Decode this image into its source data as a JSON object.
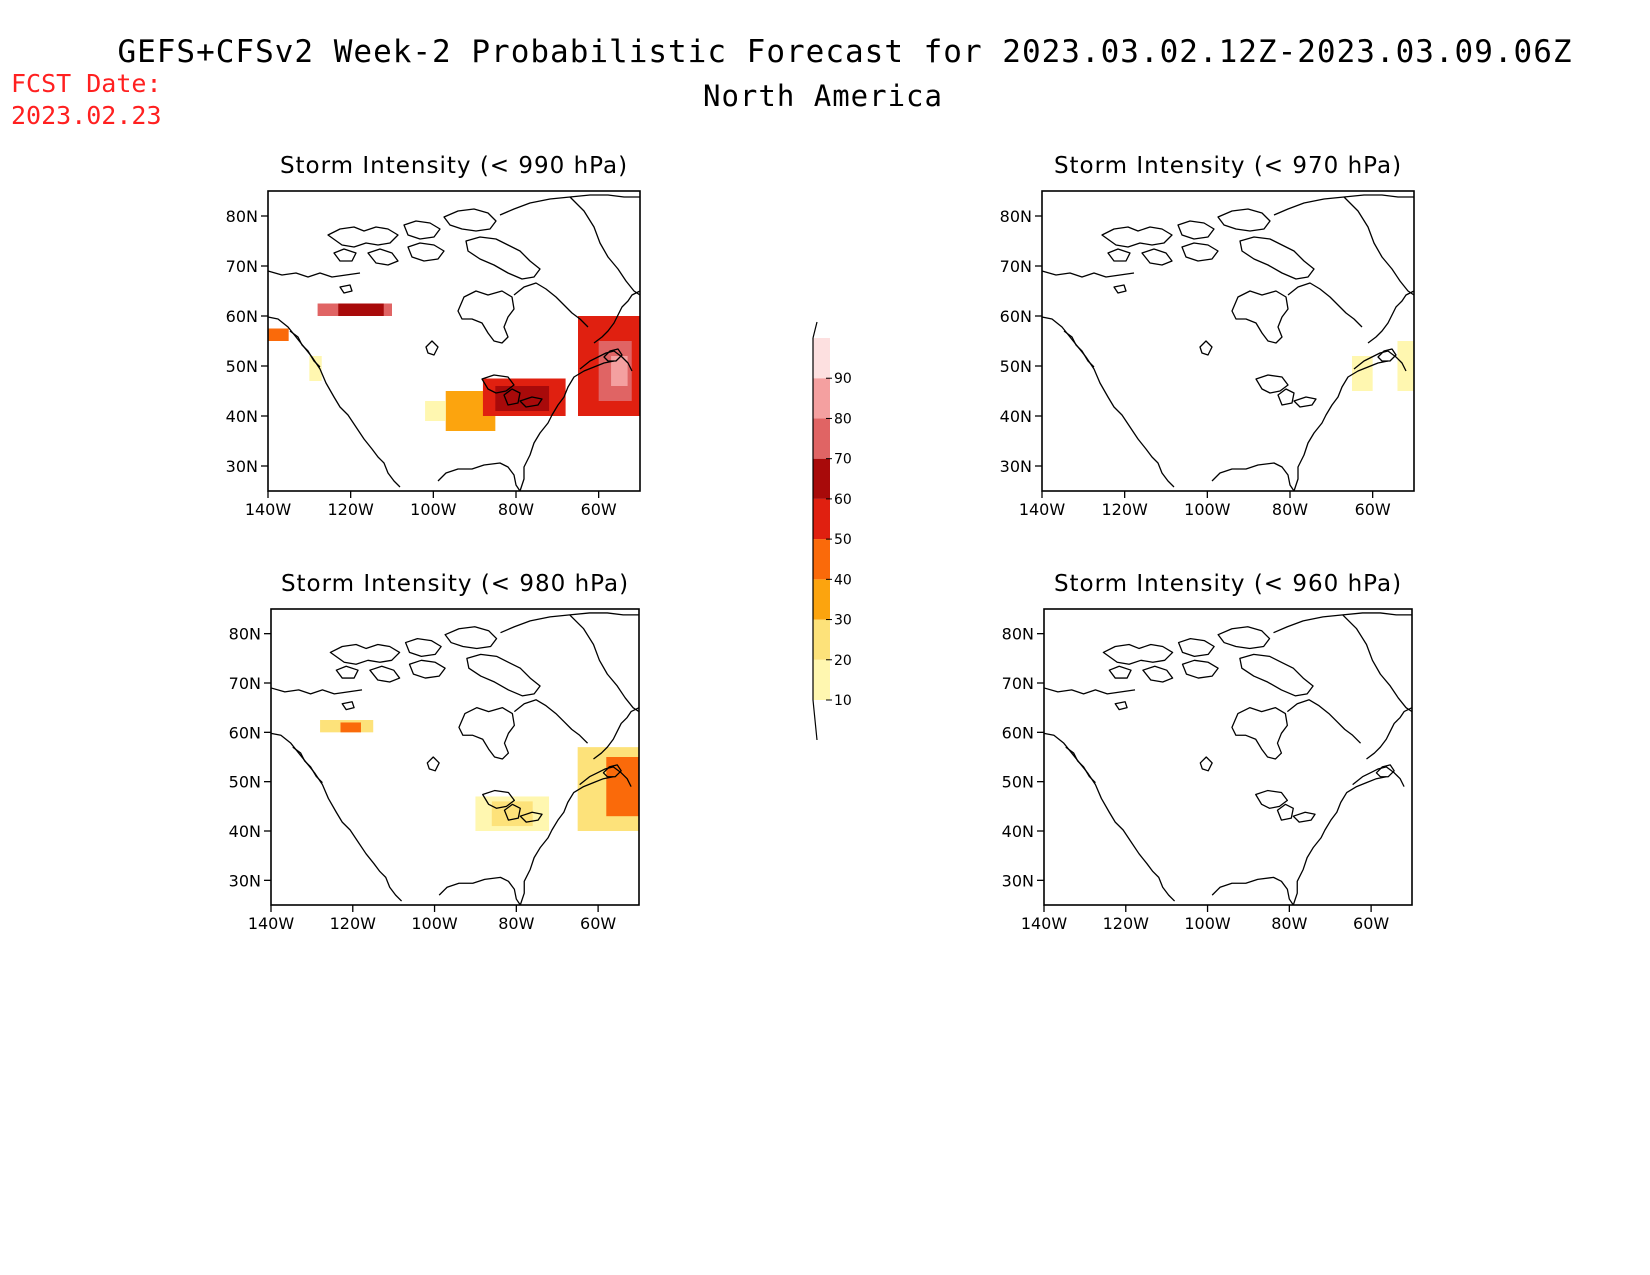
{
  "header": {
    "title": "GEFS+CFSv2 Week-2 Probabilistic Forecast for 2023.03.02.12Z-2023.03.09.06Z",
    "subtitle": "North America",
    "fcst_label": "FCST Date:",
    "fcst_date": "2023.02.23"
  },
  "axes": {
    "lat_labels": [
      "80N",
      "70N",
      "60N",
      "50N",
      "40N",
      "30N"
    ],
    "lon_labels": [
      "140W",
      "120W",
      "100W",
      "80W",
      "60W"
    ],
    "lat_values": [
      80,
      70,
      60,
      50,
      40,
      30
    ],
    "lon_values": [
      -140,
      -120,
      -100,
      -80,
      -60
    ],
    "lon_range": [
      -140,
      -50
    ],
    "lat_range": [
      25,
      85
    ]
  },
  "colorbar": {
    "labels": [
      "10",
      "20",
      "30",
      "40",
      "50",
      "60",
      "70",
      "80",
      "90"
    ],
    "colors": [
      "#fff7b0",
      "#fde27a",
      "#fca40e",
      "#fa6a0a",
      "#e02010",
      "#a80a0a",
      "#e06464",
      "#f4a0a0",
      "#fde0e0"
    ]
  },
  "panels": [
    {
      "id": "p990",
      "title": "Storm Intensity (< 990 hPa)",
      "regions": [
        {
          "lon": [
            -128,
            -110
          ],
          "lat": [
            60,
            62.5
          ],
          "level": "70-80"
        },
        {
          "lon": [
            -123,
            -112
          ],
          "lat": [
            60,
            62.5
          ],
          "level": "60-70"
        },
        {
          "lon": [
            -140,
            -135
          ],
          "lat": [
            55,
            57.5
          ],
          "level": "40-50"
        },
        {
          "lon": [
            -130,
            -127
          ],
          "lat": [
            47,
            52
          ],
          "level": "10-20"
        },
        {
          "lon": [
            -97,
            -85
          ],
          "lat": [
            37,
            45
          ],
          "level": "30-40"
        },
        {
          "lon": [
            -102,
            -97
          ],
          "lat": [
            39,
            43
          ],
          "level": "10-20"
        },
        {
          "lon": [
            -88,
            -68
          ],
          "lat": [
            40,
            47.5
          ],
          "level": "50-60"
        },
        {
          "lon": [
            -85,
            -72
          ],
          "lat": [
            41,
            46
          ],
          "level": "60-70"
        },
        {
          "lon": [
            -65,
            -50
          ],
          "lat": [
            40,
            60
          ],
          "level": "50-60"
        },
        {
          "lon": [
            -60,
            -52
          ],
          "lat": [
            43,
            55
          ],
          "level": "70-80"
        },
        {
          "lon": [
            -57,
            -53
          ],
          "lat": [
            46,
            52
          ],
          "level": "80-90"
        }
      ]
    },
    {
      "id": "p970",
      "title": "Storm Intensity (< 970 hPa)",
      "regions": [
        {
          "lon": [
            -65,
            -60
          ],
          "lat": [
            45,
            52
          ],
          "level": "10-20"
        },
        {
          "lon": [
            -54,
            -50
          ],
          "lat": [
            45,
            55
          ],
          "level": "10-20"
        }
      ]
    },
    {
      "id": "p980",
      "title": "Storm Intensity (< 980 hPa)",
      "regions": [
        {
          "lon": [
            -128,
            -115
          ],
          "lat": [
            60,
            62.5
          ],
          "level": "20-30"
        },
        {
          "lon": [
            -123,
            -118
          ],
          "lat": [
            60,
            62
          ],
          "level": "40-50"
        },
        {
          "lon": [
            -90,
            -72
          ],
          "lat": [
            40,
            47
          ],
          "level": "10-20"
        },
        {
          "lon": [
            -86,
            -76
          ],
          "lat": [
            41,
            46
          ],
          "level": "20-30"
        },
        {
          "lon": [
            -65,
            -50
          ],
          "lat": [
            40,
            57
          ],
          "level": "20-30"
        },
        {
          "lon": [
            -58,
            -50
          ],
          "lat": [
            43,
            55
          ],
          "level": "40-50"
        }
      ]
    },
    {
      "id": "p960",
      "title": "Storm Intensity (< 960 hPa)",
      "regions": []
    }
  ]
}
